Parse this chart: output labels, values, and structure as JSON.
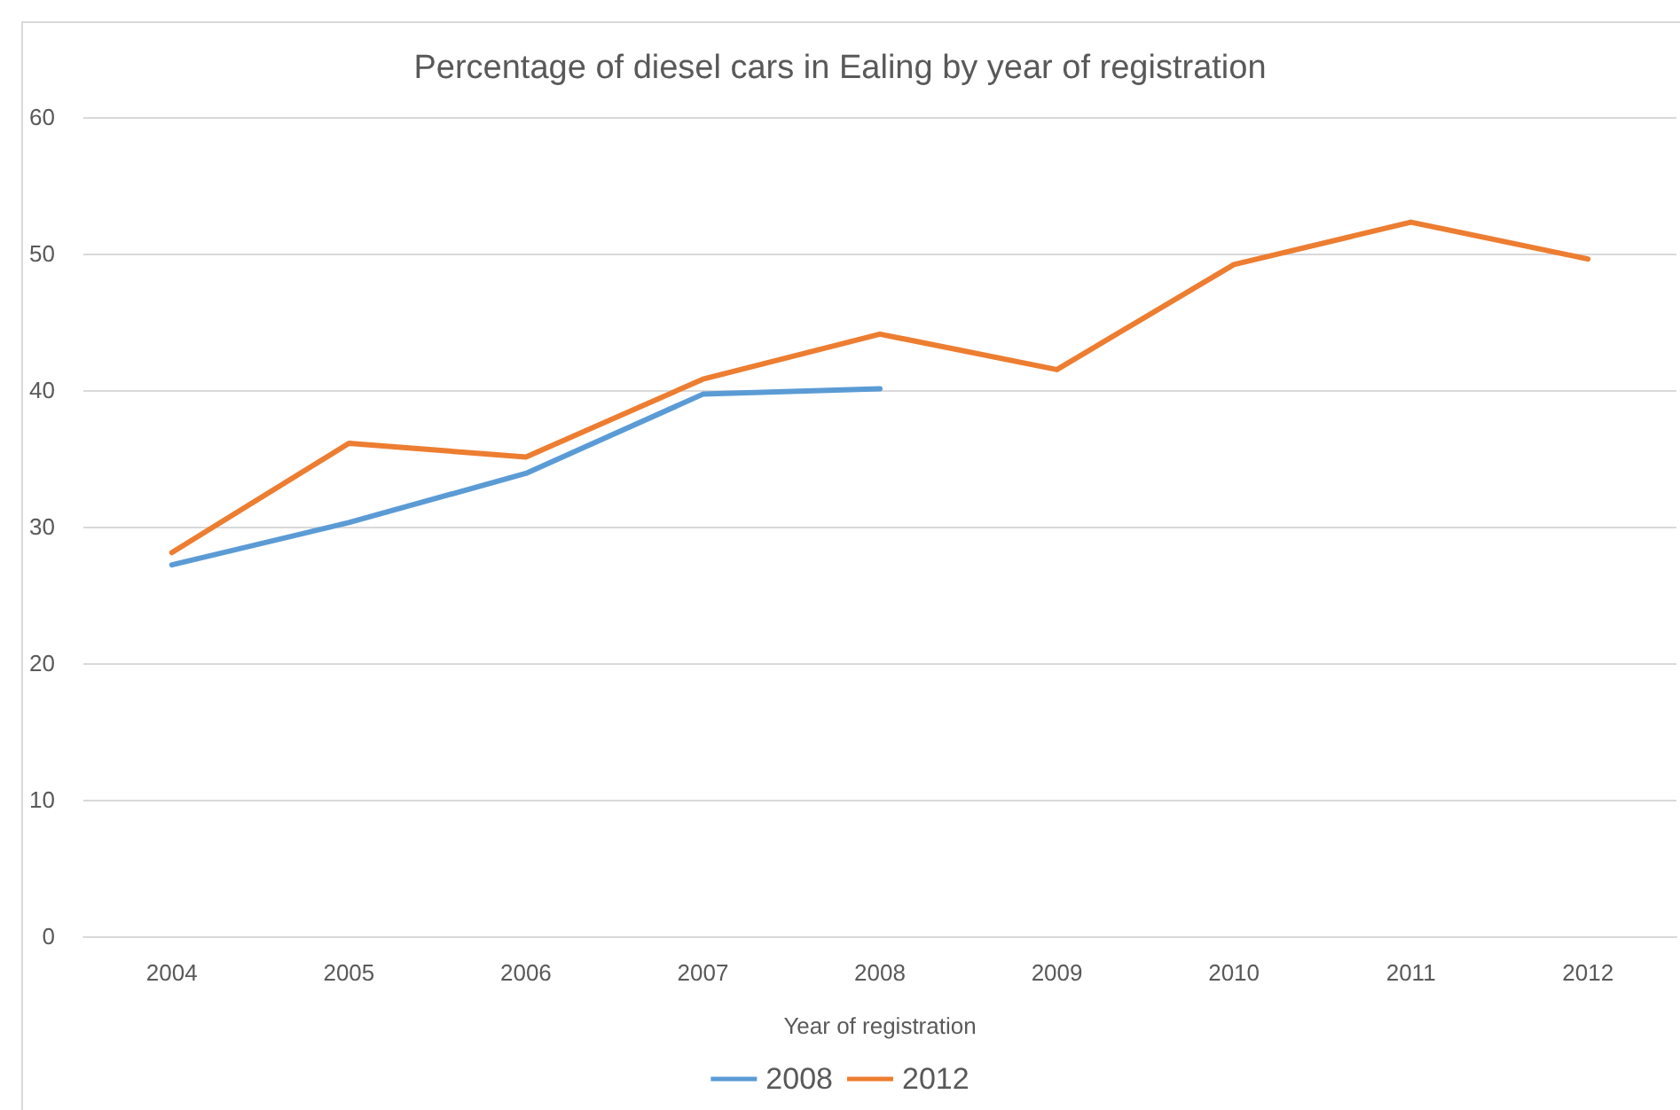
{
  "chart_data": {
    "type": "line",
    "title": "Percentage of diesel cars in Ealing by year of registration",
    "xlabel": "Year of registration",
    "categories": [
      "2004",
      "2005",
      "2006",
      "2007",
      "2008",
      "2009",
      "2010",
      "2011",
      "2012"
    ],
    "series": [
      {
        "name": "2008",
        "color": "#5b9bd5",
        "values": [
          27.2,
          30.3,
          33.9,
          39.7,
          40.1,
          null,
          null,
          null,
          null
        ]
      },
      {
        "name": "2012",
        "color": "#ed7d31",
        "values": [
          28.1,
          36.1,
          35.1,
          40.8,
          44.1,
          41.5,
          49.2,
          52.3,
          49.6
        ]
      }
    ],
    "ylim": [
      0,
      60
    ],
    "yticks": [
      0,
      10,
      20,
      30,
      40,
      50,
      60
    ],
    "grid": "y",
    "legend": "bottom",
    "marker": "none",
    "line_style": "solid"
  }
}
